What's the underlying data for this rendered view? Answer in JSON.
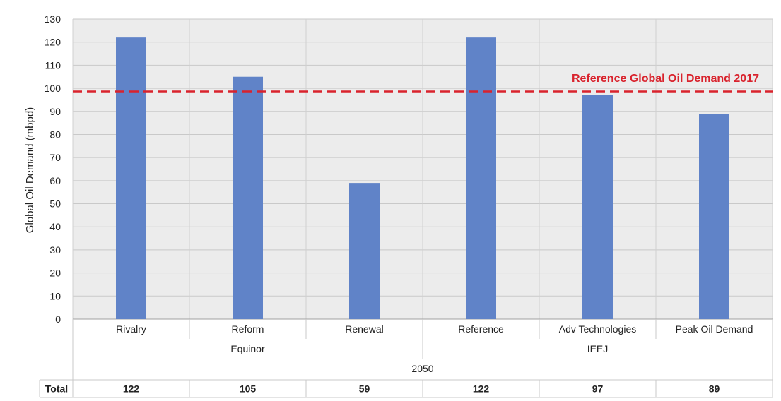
{
  "chart_data": {
    "type": "bar",
    "ylabel": "Global Oil Demand (mbpd)",
    "ylim": [
      0,
      130
    ],
    "yticks": [
      0,
      10,
      20,
      30,
      40,
      50,
      60,
      70,
      80,
      90,
      100,
      110,
      120,
      130
    ],
    "categories": [
      "Rivalry",
      "Reform",
      "Renewal",
      "Reference",
      "Adv Technologies",
      "Peak Oil Demand"
    ],
    "values": [
      122,
      105,
      59,
      122,
      97,
      89
    ],
    "groups": [
      {
        "label": "Equinor",
        "categories": [
          "Rivalry",
          "Reform",
          "Renewal"
        ]
      },
      {
        "label": "IEEJ",
        "categories": [
          "Reference",
          "Adv Technologies",
          "Peak Oil Demand"
        ]
      }
    ],
    "outer_group_label": "2050",
    "reference_line": {
      "label": "Reference Global Oil Demand 2017",
      "value": 98.5,
      "color": "#d9232d",
      "style": "dashed"
    },
    "table": {
      "row_label": "Total",
      "values": [
        "122",
        "105",
        "59",
        "122",
        "97",
        "89"
      ]
    },
    "bar_color": "#6083c8",
    "plot_background": "#ececec",
    "grid": true
  }
}
